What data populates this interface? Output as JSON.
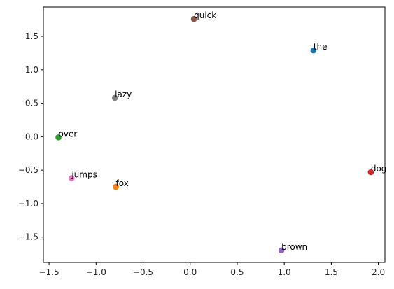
{
  "chart_data": {
    "type": "scatter",
    "title": "",
    "xlabel": "",
    "ylabel": "",
    "xlim": [
      -1.56,
      2.07
    ],
    "ylim": [
      -1.88,
      1.94
    ],
    "xticks": [
      "−1.5",
      "−1.0",
      "−0.5",
      "0.0",
      "0.5",
      "1.0",
      "1.5",
      "2.0"
    ],
    "xtick_values": [
      -1.5,
      -1.0,
      -0.5,
      0.0,
      0.5,
      1.0,
      1.5,
      2.0
    ],
    "yticks": [
      "−1.5",
      "−1.0",
      "−0.5",
      "0.0",
      "0.5",
      "1.0",
      "1.5"
    ],
    "ytick_values": [
      -1.5,
      -1.0,
      -0.5,
      0.0,
      0.5,
      1.0,
      1.5
    ],
    "grid": false,
    "points": [
      {
        "label": "the",
        "x": 1.31,
        "y": 1.29,
        "color": "#1f77b4"
      },
      {
        "label": "fox",
        "x": -0.79,
        "y": -0.75,
        "color": "#ff7f0e"
      },
      {
        "label": "over",
        "x": -1.4,
        "y": -0.01,
        "color": "#2ca02c"
      },
      {
        "label": "dog",
        "x": 1.92,
        "y": -0.53,
        "color": "#d62728"
      },
      {
        "label": "brown",
        "x": 0.97,
        "y": -1.7,
        "color": "#9467bd"
      },
      {
        "label": "quick",
        "x": 0.04,
        "y": 1.76,
        "color": "#8c564b"
      },
      {
        "label": "jumps",
        "x": -1.26,
        "y": -0.62,
        "color": "#e377c2"
      },
      {
        "label": "lazy",
        "x": -0.8,
        "y": 0.58,
        "color": "#7f7f7f"
      }
    ]
  }
}
